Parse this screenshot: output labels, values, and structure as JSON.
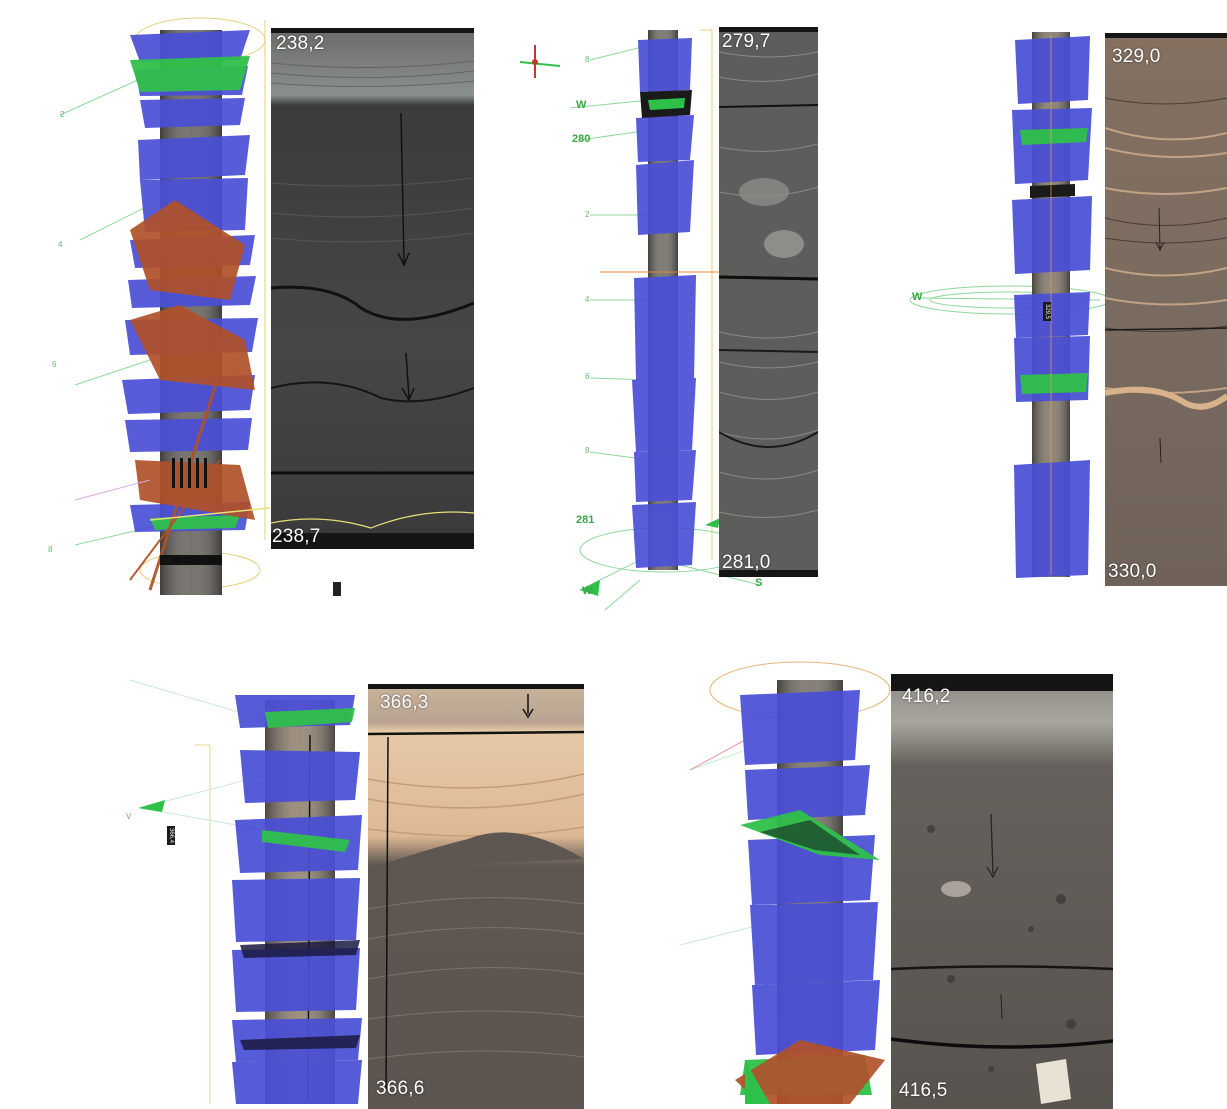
{
  "colors": {
    "fracture_blue": "#4a4fd6",
    "fracture_green": "#2fc04a",
    "fracture_brown": "#b0512a",
    "guide_green": "#7fd18a",
    "guide_yellow": "#e6c35a"
  },
  "panels": [
    {
      "id": "p1",
      "depth_top": "238,2",
      "depth_bottom": "238,7",
      "labels": []
    },
    {
      "id": "p2",
      "depth_top": "279,7",
      "depth_bottom": "281,0",
      "labels": [
        "W",
        "280",
        "281",
        "W",
        "S"
      ]
    },
    {
      "id": "p3",
      "depth_top": "329,0",
      "depth_bottom": "330,0",
      "labels": [
        "W"
      ]
    },
    {
      "id": "p4",
      "depth_top": "366,3",
      "depth_bottom": "366,6",
      "labels": []
    },
    {
      "id": "p5",
      "depth_top": "416,2",
      "depth_bottom": "416,5",
      "labels": []
    }
  ]
}
